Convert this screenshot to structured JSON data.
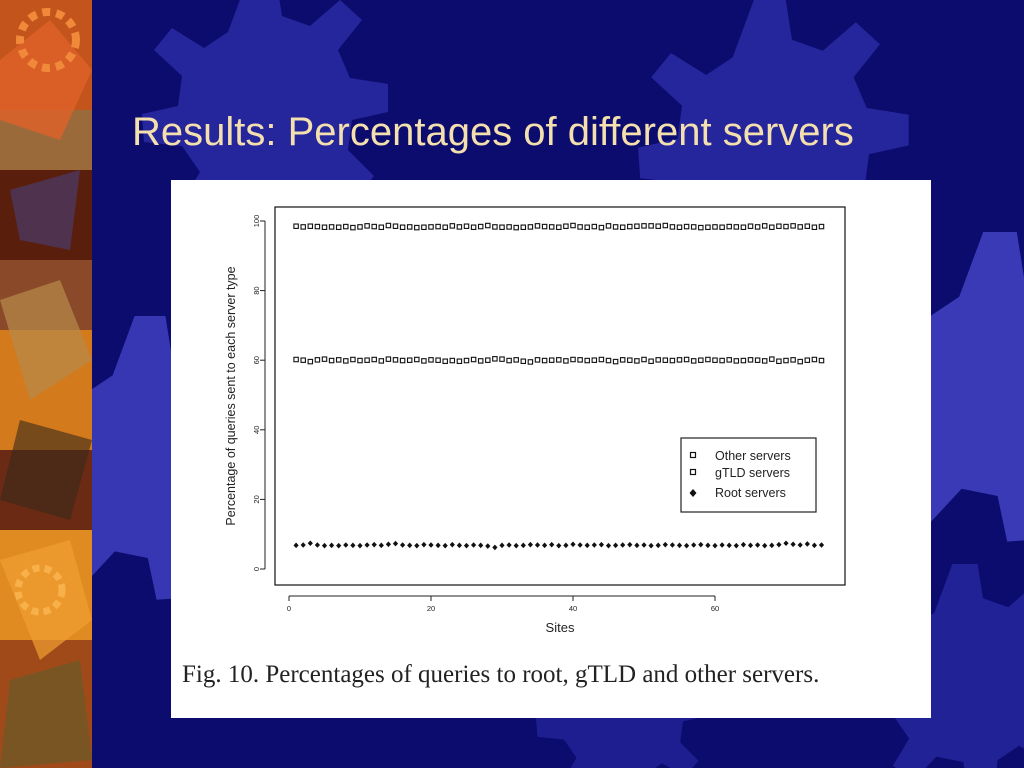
{
  "slide": {
    "title": "Results: Percentages of different servers",
    "caption": "Fig. 10.  Percentages of queries to root, gTLD and other servers.",
    "colors": {
      "background": "#0c0c6e",
      "title": "#f4dfae",
      "gear": "#2c2ca8",
      "card": "#ffffff"
    },
    "decoration_icons": [
      "gear-icon"
    ]
  },
  "chart_data": {
    "type": "scatter",
    "xlabel": "Sites",
    "ylabel": "Percentage of queries sent to each server type",
    "xlim": [
      0,
      78
    ],
    "ylim": [
      0,
      100
    ],
    "xticks": [
      0,
      20,
      40,
      60
    ],
    "yticks": [
      0,
      20,
      40,
      60,
      80,
      100
    ],
    "grid": false,
    "legend_position": "right",
    "x": [
      1,
      2,
      3,
      4,
      5,
      6,
      7,
      8,
      9,
      10,
      11,
      12,
      13,
      14,
      15,
      16,
      17,
      18,
      19,
      20,
      21,
      22,
      23,
      24,
      25,
      26,
      27,
      28,
      29,
      30,
      31,
      32,
      33,
      34,
      35,
      36,
      37,
      38,
      39,
      40,
      41,
      42,
      43,
      44,
      45,
      46,
      47,
      48,
      49,
      50,
      51,
      52,
      53,
      54,
      55,
      56,
      57,
      58,
      59,
      60,
      61,
      62,
      63,
      64,
      65,
      66,
      67,
      68,
      69,
      70,
      71,
      72,
      73,
      74,
      75
    ],
    "series": [
      {
        "name": "Other servers",
        "marker": "square",
        "values": [
          98.5,
          98.3,
          98.5,
          98.4,
          98.2,
          98.3,
          98.2,
          98.4,
          98.1,
          98.3,
          98.6,
          98.4,
          98.2,
          98.7,
          98.5,
          98.2,
          98.3,
          98.1,
          98.2,
          98.3,
          98.4,
          98.2,
          98.6,
          98.3,
          98.5,
          98.2,
          98.4,
          98.7,
          98.3,
          98.2,
          98.3,
          98.1,
          98.2,
          98.3,
          98.6,
          98.4,
          98.3,
          98.2,
          98.5,
          98.7,
          98.3,
          98.2,
          98.4,
          98.1,
          98.6,
          98.3,
          98.2,
          98.4,
          98.5,
          98.6,
          98.6,
          98.5,
          98.7,
          98.3,
          98.2,
          98.4,
          98.3,
          98.1,
          98.2,
          98.3,
          98.2,
          98.4,
          98.3,
          98.2,
          98.5,
          98.3,
          98.6,
          98.2,
          98.5,
          98.4,
          98.6,
          98.3,
          98.5,
          98.2,
          98.4
        ]
      },
      {
        "name": "gTLD servers",
        "marker": "square",
        "values": [
          60.2,
          60.0,
          59.6,
          60.1,
          60.3,
          59.9,
          60.1,
          59.8,
          60.2,
          59.9,
          60.0,
          60.2,
          59.8,
          60.3,
          60.1,
          59.9,
          60.0,
          60.2,
          59.8,
          60.1,
          60.0,
          59.7,
          59.9,
          59.7,
          59.9,
          60.2,
          59.8,
          60.0,
          60.4,
          60.3,
          59.9,
          60.1,
          59.7,
          59.5,
          60.1,
          59.9,
          60.0,
          60.1,
          59.8,
          60.2,
          60.1,
          59.9,
          60.0,
          60.2,
          59.9,
          59.6,
          60.1,
          60.0,
          59.8,
          60.2,
          59.7,
          60.1,
          60.0,
          59.9,
          60.1,
          60.2,
          59.8,
          60.0,
          60.2,
          60.0,
          59.9,
          60.1,
          59.8,
          59.9,
          60.1,
          60.0,
          59.8,
          60.3,
          59.7,
          59.9,
          60.1,
          59.6,
          60.0,
          60.2,
          59.9
        ]
      },
      {
        "name": "Root servers",
        "marker": "filled-diamond",
        "values": [
          6.8,
          6.9,
          7.4,
          6.9,
          6.7,
          6.8,
          6.7,
          6.9,
          6.8,
          6.7,
          6.9,
          7.0,
          6.8,
          7.1,
          7.3,
          6.9,
          6.8,
          6.7,
          7.0,
          6.9,
          6.8,
          6.7,
          7.0,
          6.8,
          6.7,
          6.9,
          6.8,
          6.6,
          6.2,
          6.8,
          6.9,
          6.7,
          6.8,
          7.0,
          6.9,
          6.8,
          7.0,
          6.7,
          6.8,
          7.1,
          6.9,
          6.8,
          6.9,
          7.0,
          6.7,
          6.8,
          6.9,
          7.0,
          6.8,
          6.9,
          6.7,
          6.8,
          7.0,
          6.9,
          6.8,
          6.7,
          6.9,
          7.0,
          6.8,
          6.7,
          6.9,
          6.8,
          6.7,
          7.0,
          6.8,
          6.9,
          6.7,
          6.8,
          7.0,
          7.4,
          7.1,
          6.9,
          7.2,
          6.8,
          6.9
        ]
      }
    ]
  }
}
